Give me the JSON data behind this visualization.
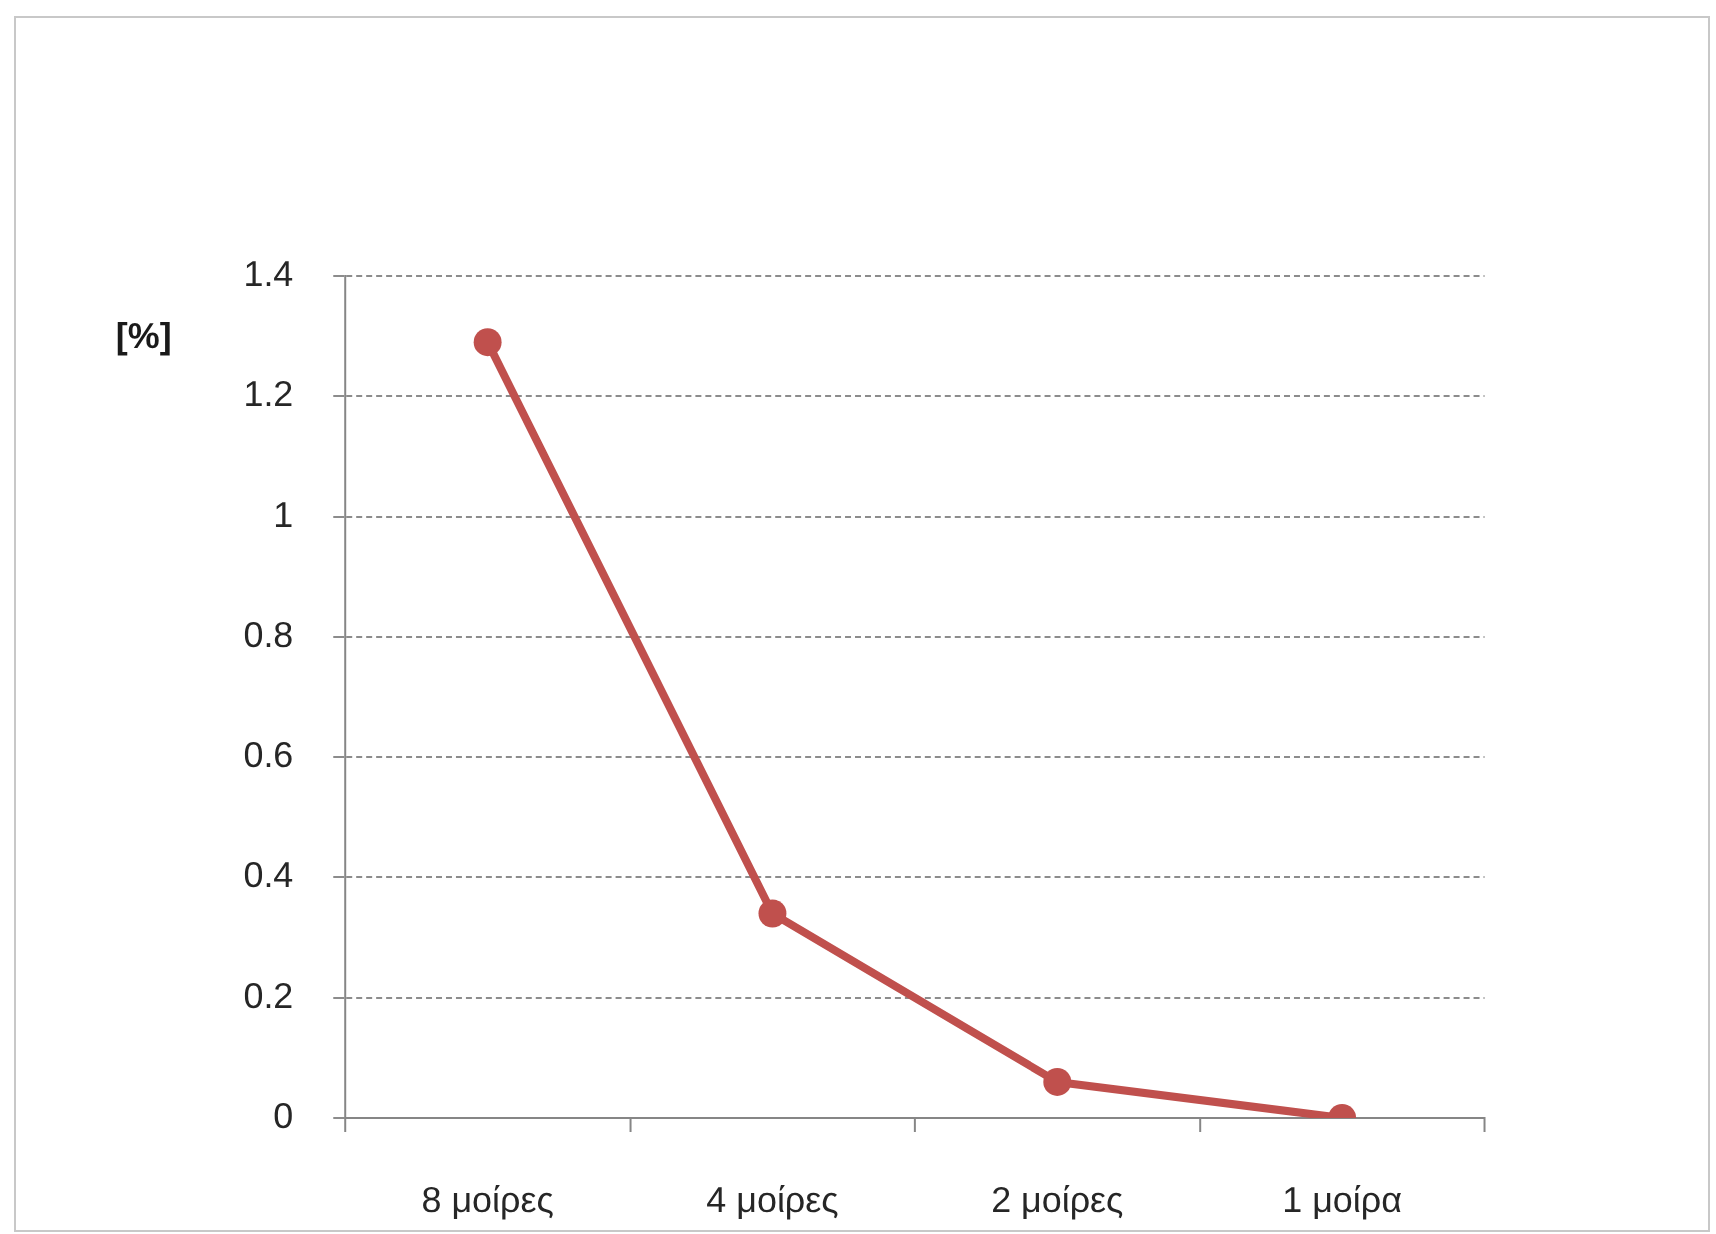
{
  "chart_data": {
    "type": "line",
    "ylabel": "[%]",
    "categories": [
      "8 μοίρες",
      "4 μοίρες",
      "2 μοίρες",
      "1 μοίρα"
    ],
    "series": [
      {
        "color": "#c0504d",
        "values": [
          1.29,
          0.34,
          0.06,
          0
        ]
      }
    ],
    "ylim": [
      0,
      1.4
    ],
    "yticks": [
      0,
      0.2,
      0.4,
      0.6,
      0.8,
      1,
      1.2,
      1.4
    ],
    "grid": "y",
    "legend": false,
    "marker": "circle",
    "line_style": "solid"
  }
}
